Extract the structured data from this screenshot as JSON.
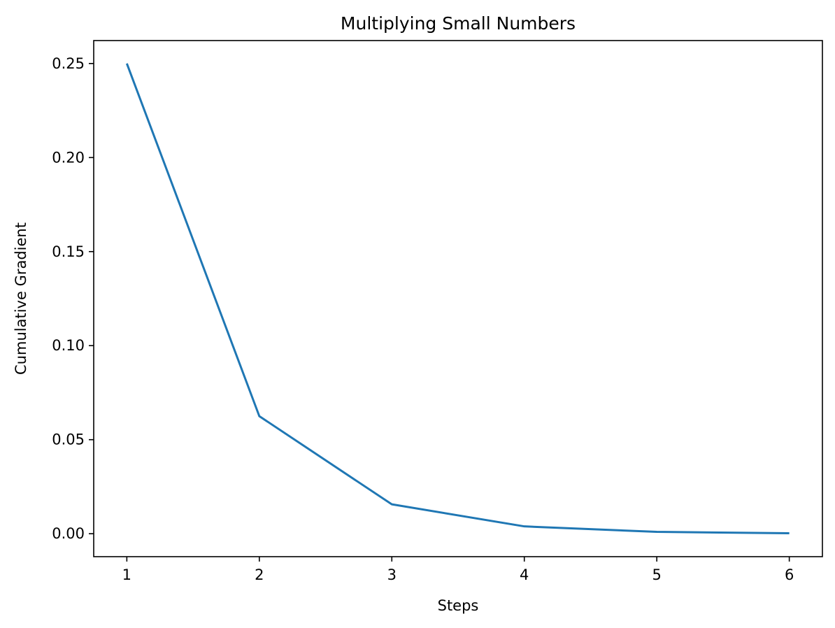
{
  "chart_data": {
    "type": "line",
    "title": "Multiplying Small Numbers",
    "xlabel": "Steps",
    "ylabel": "Cumulative Gradient",
    "x": [
      1,
      2,
      3,
      4,
      5,
      6
    ],
    "series": [
      {
        "values": [
          0.25,
          0.0625,
          0.015625,
          0.00390625,
          0.0009765625,
          0.000244140625
        ],
        "color": "#1f77b4"
      }
    ],
    "xlim": [
      0.75,
      6.25
    ],
    "ylim": [
      -0.0122,
      0.2622
    ],
    "xticks": [
      1,
      2,
      3,
      4,
      5,
      6
    ],
    "xtick_labels": [
      "1",
      "2",
      "3",
      "4",
      "5",
      "6"
    ],
    "yticks": [
      0.0,
      0.05,
      0.1,
      0.15,
      0.2,
      0.25
    ],
    "ytick_labels": [
      "0.00",
      "0.05",
      "0.10",
      "0.15",
      "0.20",
      "0.25"
    ],
    "grid": false,
    "legend": "none"
  }
}
